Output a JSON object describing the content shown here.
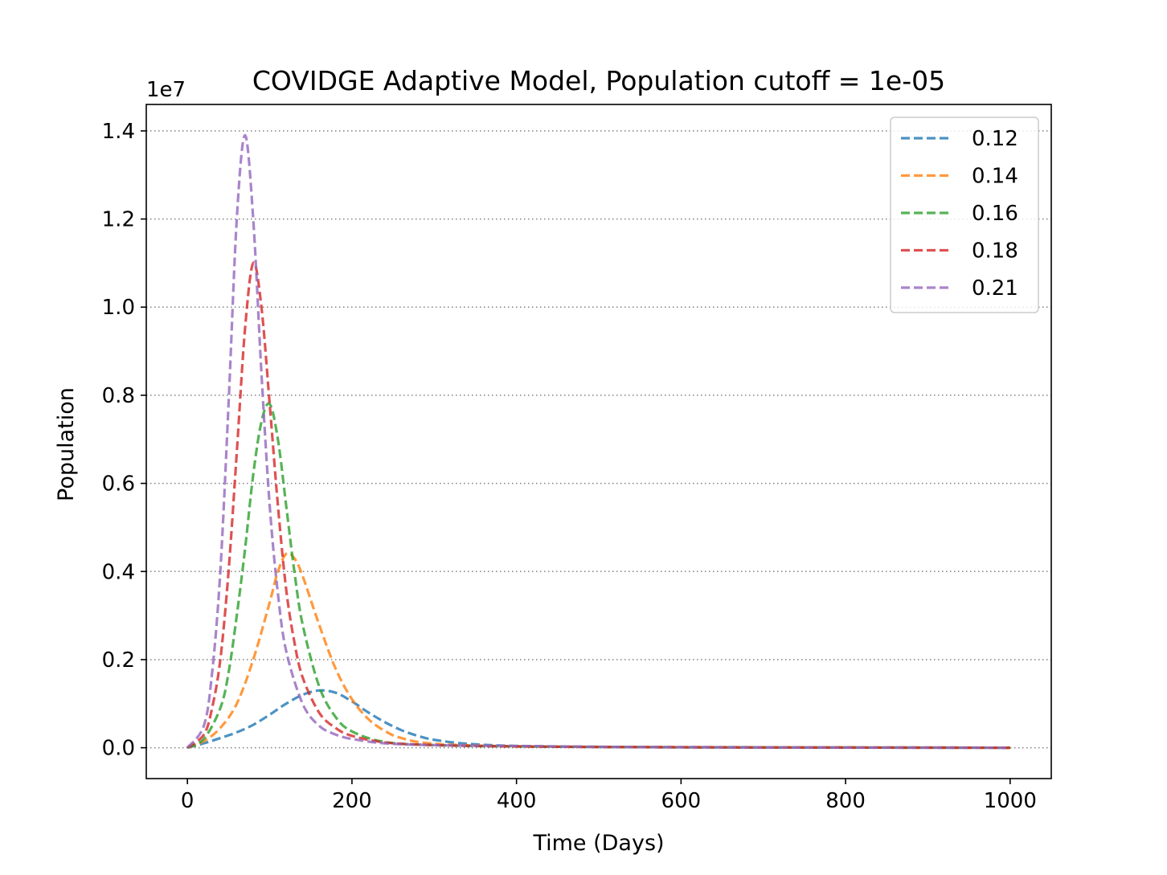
{
  "chart_data": {
    "type": "line",
    "title": "COVIDGE Adaptive Model, Population cutoff = 1e-05",
    "xlabel": "Time (Days)",
    "ylabel": "Population",
    "y_offset_label": "1e7",
    "xlim": [
      -50,
      1050
    ],
    "ylim": [
      -0.07,
      1.46
    ],
    "y_scale_note": "values in units of 1e7",
    "x_ticks": [
      0,
      200,
      400,
      600,
      800,
      1000
    ],
    "x_tick_labels": [
      "0",
      "200",
      "400",
      "600",
      "800",
      "1000"
    ],
    "y_ticks": [
      0.0,
      0.2,
      0.4,
      0.6,
      0.8,
      1.0,
      1.2,
      1.4
    ],
    "y_tick_labels": [
      "0.0",
      "0.2",
      "0.4",
      "0.6",
      "0.8",
      "1.0",
      "1.2",
      "1.4"
    ],
    "grid": "horizontal dotted",
    "legend_position": "top-right",
    "line_style": "dashed",
    "series": [
      {
        "name": "0.12",
        "color": "#1f77b4",
        "x": [
          0,
          20,
          40,
          60,
          80,
          100,
          120,
          140,
          160,
          180,
          200,
          220,
          240,
          260,
          280,
          300,
          340,
          400,
          500,
          700,
          1000
        ],
        "y": [
          0.0,
          0.01,
          0.022,
          0.035,
          0.052,
          0.075,
          0.1,
          0.12,
          0.13,
          0.125,
          0.105,
          0.08,
          0.058,
          0.04,
          0.027,
          0.018,
          0.009,
          0.004,
          0.002,
          0.001,
          0.0
        ]
      },
      {
        "name": "0.14",
        "color": "#ff7f0e",
        "x": [
          0,
          20,
          40,
          60,
          80,
          100,
          110,
          120,
          130,
          140,
          160,
          180,
          200,
          220,
          240,
          260,
          300,
          400,
          500,
          700,
          1000
        ],
        "y": [
          0.0,
          0.015,
          0.045,
          0.1,
          0.2,
          0.33,
          0.4,
          0.44,
          0.43,
          0.39,
          0.28,
          0.18,
          0.11,
          0.065,
          0.038,
          0.022,
          0.009,
          0.003,
          0.002,
          0.001,
          0.0
        ]
      },
      {
        "name": "0.16",
        "color": "#2ca02c",
        "x": [
          0,
          20,
          40,
          50,
          60,
          70,
          80,
          90,
          100,
          110,
          120,
          130,
          140,
          160,
          180,
          200,
          240,
          300,
          400,
          600,
          1000
        ],
        "y": [
          0.0,
          0.02,
          0.09,
          0.17,
          0.3,
          0.45,
          0.62,
          0.74,
          0.78,
          0.7,
          0.55,
          0.4,
          0.28,
          0.14,
          0.07,
          0.037,
          0.013,
          0.006,
          0.003,
          0.001,
          0.0
        ]
      },
      {
        "name": "0.18",
        "color": "#d62728",
        "x": [
          0,
          20,
          30,
          40,
          50,
          60,
          70,
          80,
          90,
          100,
          110,
          120,
          130,
          140,
          160,
          180,
          200,
          240,
          300,
          400,
          600,
          1000
        ],
        "y": [
          0.0,
          0.03,
          0.09,
          0.2,
          0.4,
          0.67,
          0.95,
          1.1,
          1.0,
          0.78,
          0.55,
          0.36,
          0.24,
          0.16,
          0.08,
          0.045,
          0.027,
          0.012,
          0.006,
          0.003,
          0.001,
          0.0
        ]
      },
      {
        "name": "0.21",
        "color": "#9467bd",
        "x": [
          0,
          20,
          30,
          40,
          50,
          60,
          70,
          80,
          90,
          100,
          110,
          120,
          140,
          160,
          180,
          200,
          240,
          300,
          400,
          600,
          1000
        ],
        "y": [
          0.0,
          0.05,
          0.17,
          0.4,
          0.78,
          1.2,
          1.39,
          1.2,
          0.85,
          0.55,
          0.35,
          0.22,
          0.1,
          0.05,
          0.03,
          0.02,
          0.01,
          0.006,
          0.004,
          0.001,
          0.0
        ]
      }
    ]
  }
}
